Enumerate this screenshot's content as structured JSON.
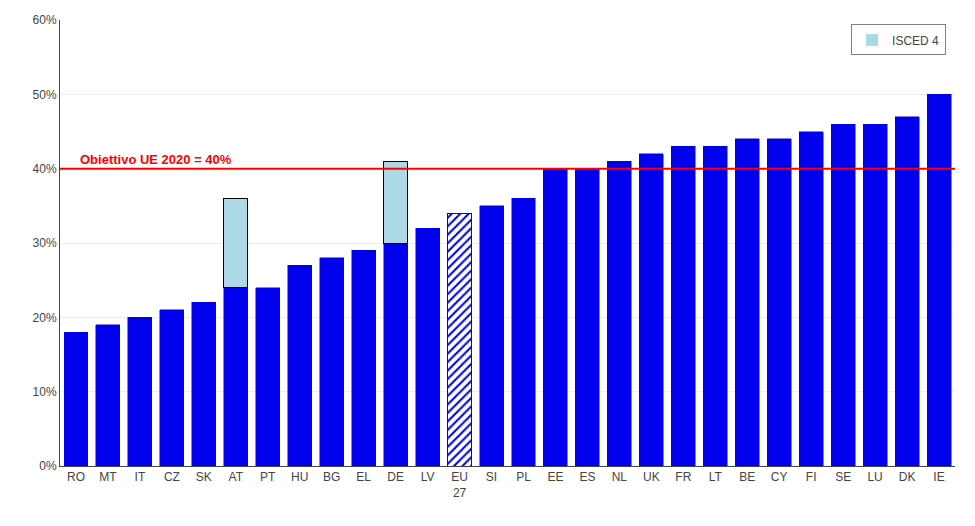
{
  "chart_data": {
    "type": "bar",
    "stacked": true,
    "categories": [
      "RO",
      "MT",
      "IT",
      "CZ",
      "SK",
      "AT",
      "PT",
      "HU",
      "BG",
      "EL",
      "DE",
      "LV",
      "EU\n27",
      "SI",
      "PL",
      "EE",
      "ES",
      "NL",
      "UK",
      "FR",
      "LT",
      "BE",
      "CY",
      "FI",
      "SE",
      "LU",
      "DK",
      "IE"
    ],
    "series": [
      {
        "color": "#0000EE",
        "values": [
          18,
          19,
          20,
          21,
          22,
          24,
          24,
          27,
          28,
          29,
          30,
          32,
          null,
          35,
          36,
          40,
          40,
          41,
          42,
          43,
          43,
          44,
          44,
          45,
          46,
          46,
          47,
          50
        ]
      },
      {
        "color": "#0000EE",
        "marker": "hatched",
        "values": [
          null,
          null,
          null,
          null,
          null,
          null,
          null,
          null,
          null,
          null,
          null,
          null,
          34,
          null,
          null,
          null,
          null,
          null,
          null,
          null,
          null,
          null,
          null,
          null,
          null,
          null,
          null,
          null
        ]
      },
      {
        "name": "ISCED 4",
        "color": "#ADD8E6",
        "values": [
          0,
          0,
          0,
          0,
          0,
          12,
          0,
          0,
          0,
          0,
          11,
          0,
          0,
          0,
          0,
          0,
          0,
          0,
          0,
          0,
          0,
          0,
          0,
          0,
          0,
          0,
          0,
          0
        ]
      }
    ],
    "annotations": [
      {
        "text": "Obiettivo UE 2020 = 40%",
        "y": 40,
        "color": "red"
      }
    ],
    "ylim": [
      0,
      60
    ],
    "yticks": [
      {
        "value": 0,
        "label": "0%"
      },
      {
        "value": 10,
        "label": "10%"
      },
      {
        "value": 20,
        "label": "20%"
      },
      {
        "value": 30,
        "label": "30%"
      },
      {
        "value": 40,
        "label": "40%"
      },
      {
        "value": 50,
        "label": "50%"
      },
      {
        "value": 60,
        "label": "60%"
      }
    ],
    "grid": true,
    "legend": "upper right"
  }
}
